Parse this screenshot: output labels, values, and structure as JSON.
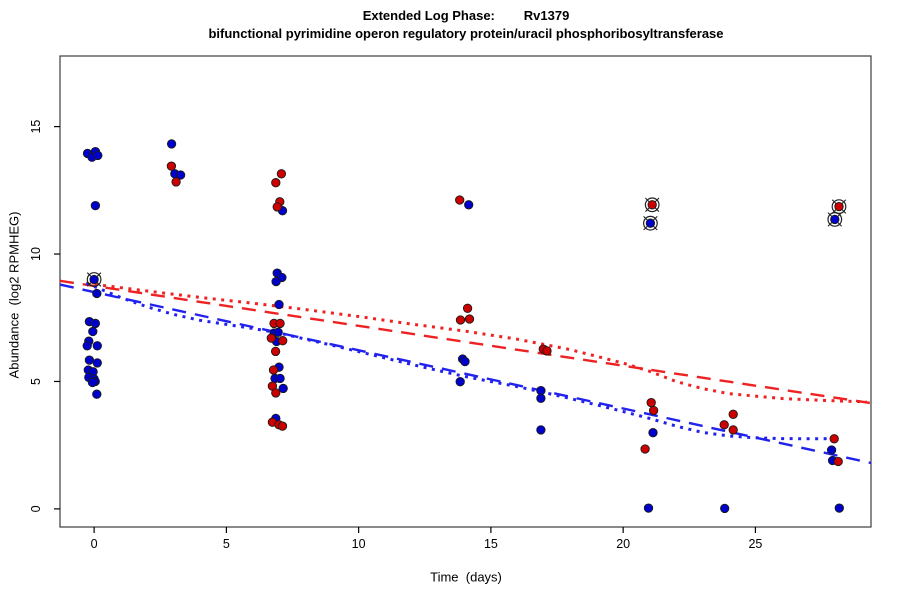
{
  "header": {
    "title": "Extended Log Phase:        Rv1379",
    "subtitle": "bifunctional pyrimidine operon regulatory protein/uracil phosphoribosyltransferase"
  },
  "chart_data": {
    "type": "scatter",
    "title": "Extended Log Phase:        Rv1379",
    "subtitle": "bifunctional pyrimidine operon regulatory protein/uracil phosphoribosyltransferase",
    "xlabel": "Time  (days)",
    "ylabel": "Abundance  (log2 RPMHEG)",
    "xlim": [
      -1.29,
      29.37
    ],
    "ylim": [
      -0.71,
      17.77
    ],
    "x_ticks": [
      0,
      5,
      10,
      15,
      20,
      25
    ],
    "y_ticks": [
      0,
      5,
      10,
      15
    ],
    "grid": false,
    "legend": "none",
    "colors": {
      "blue_point": "#0000CD",
      "red_point": "#CC0000",
      "blue_line": "#2222EE",
      "red_line": "#EE2222",
      "point_stroke": "#1a1a1a",
      "marker_ring": "#222222",
      "box": "#3c3c3c",
      "text": "#000000"
    },
    "series": [
      {
        "name": "red-dashed-fit",
        "type": "line",
        "style": "dashed",
        "color_key": "red_line",
        "points": [
          [
            -1.29,
            8.95
          ],
          [
            29.37,
            4.15
          ]
        ]
      },
      {
        "name": "blue-dashed-fit",
        "type": "line",
        "style": "dashed",
        "color_key": "blue_line",
        "points": [
          [
            -1.29,
            8.8
          ],
          [
            29.37,
            1.8
          ]
        ]
      },
      {
        "name": "red-dotted-fit",
        "type": "line",
        "style": "dotted",
        "color_key": "red_line",
        "points": [
          [
            -0.3,
            8.85
          ],
          [
            2,
            8.55
          ],
          [
            4,
            8.3
          ],
          [
            6,
            8.07
          ],
          [
            8,
            7.82
          ],
          [
            10,
            7.55
          ],
          [
            12,
            7.25
          ],
          [
            14,
            6.98
          ],
          [
            16,
            6.66
          ],
          [
            18,
            6.25
          ],
          [
            20,
            5.72
          ],
          [
            21,
            5.4
          ],
          [
            22,
            5.0
          ],
          [
            23,
            4.72
          ],
          [
            24,
            4.52
          ],
          [
            26,
            4.33
          ],
          [
            27.5,
            4.26
          ],
          [
            29.2,
            4.2
          ]
        ]
      },
      {
        "name": "blue-dotted-fit",
        "type": "line",
        "style": "dotted",
        "color_key": "blue_line",
        "points": [
          [
            -0.3,
            8.85
          ],
          [
            1,
            8.3
          ],
          [
            2,
            7.93
          ],
          [
            3,
            7.63
          ],
          [
            4,
            7.4
          ],
          [
            5,
            7.24
          ],
          [
            6,
            7.08
          ],
          [
            7,
            6.9
          ],
          [
            8,
            6.66
          ],
          [
            9,
            6.42
          ],
          [
            10,
            6.17
          ],
          [
            11,
            5.92
          ],
          [
            12,
            5.67
          ],
          [
            13,
            5.43
          ],
          [
            14,
            5.2
          ],
          [
            15,
            5.0
          ],
          [
            16,
            4.8
          ],
          [
            17,
            4.57
          ],
          [
            18,
            4.33
          ],
          [
            19,
            4.08
          ],
          [
            20,
            3.82
          ],
          [
            21,
            3.55
          ],
          [
            22,
            3.25
          ],
          [
            23,
            3.0
          ],
          [
            24,
            2.86
          ],
          [
            25,
            2.79
          ],
          [
            26,
            2.76
          ],
          [
            27,
            2.75
          ],
          [
            28.2,
            2.76
          ]
        ]
      },
      {
        "name": "blue-points",
        "type": "points",
        "color_key": "blue_point",
        "points": [
          [
            -0.25,
            13.95
          ],
          [
            0.05,
            14.02
          ],
          [
            -0.08,
            13.8
          ],
          [
            0.14,
            13.87
          ],
          [
            0.05,
            11.9
          ],
          [
            0.1,
            8.45
          ],
          [
            -0.18,
            7.35
          ],
          [
            0.05,
            7.28
          ],
          [
            -0.05,
            6.96
          ],
          [
            -0.2,
            6.58
          ],
          [
            -0.26,
            6.4
          ],
          [
            0.12,
            6.4
          ],
          [
            -0.18,
            5.84
          ],
          [
            0.12,
            5.73
          ],
          [
            -0.22,
            5.45
          ],
          [
            -0.04,
            5.38
          ],
          [
            -0.2,
            5.16
          ],
          [
            0.0,
            5.1
          ],
          [
            0.04,
            5.0
          ],
          [
            -0.06,
            4.96
          ],
          [
            0.1,
            4.5
          ],
          [
            2.93,
            14.32
          ],
          [
            3.05,
            13.15
          ],
          [
            3.27,
            13.1
          ],
          [
            7.12,
            11.7
          ],
          [
            6.92,
            9.25
          ],
          [
            7.1,
            9.08
          ],
          [
            6.88,
            8.92
          ],
          [
            6.99,
            8.02
          ],
          [
            6.8,
            6.9
          ],
          [
            6.96,
            6.93
          ],
          [
            6.9,
            6.57
          ],
          [
            6.99,
            5.56
          ],
          [
            6.84,
            5.12
          ],
          [
            7.03,
            5.12
          ],
          [
            7.15,
            4.73
          ],
          [
            6.87,
            3.55
          ],
          [
            14.16,
            11.93
          ],
          [
            13.93,
            5.88
          ],
          [
            14.02,
            5.78
          ],
          [
            13.84,
            4.99
          ],
          [
            16.89,
            4.64
          ],
          [
            16.89,
            4.34
          ],
          [
            16.89,
            3.1
          ],
          [
            21.13,
            2.99
          ],
          [
            20.96,
            0.03
          ],
          [
            23.84,
            0.02
          ],
          [
            27.88,
            2.31
          ],
          [
            27.92,
            1.9
          ],
          [
            28.17,
            0.03
          ]
        ]
      },
      {
        "name": "red-points",
        "type": "points",
        "color_key": "red_point",
        "points": [
          [
            2.92,
            13.45
          ],
          [
            3.1,
            12.83
          ],
          [
            7.08,
            13.15
          ],
          [
            6.87,
            12.8
          ],
          [
            7.02,
            12.05
          ],
          [
            6.92,
            11.85
          ],
          [
            6.8,
            7.28
          ],
          [
            7.03,
            7.28
          ],
          [
            6.7,
            6.7
          ],
          [
            7.13,
            6.6
          ],
          [
            6.86,
            6.18
          ],
          [
            6.78,
            5.45
          ],
          [
            6.74,
            4.82
          ],
          [
            6.87,
            4.55
          ],
          [
            6.74,
            3.4
          ],
          [
            6.99,
            3.3
          ],
          [
            7.12,
            3.25
          ],
          [
            13.82,
            12.12
          ],
          [
            14.12,
            7.87
          ],
          [
            13.85,
            7.41
          ],
          [
            14.19,
            7.45
          ],
          [
            16.98,
            6.27
          ],
          [
            17.12,
            6.2
          ],
          [
            21.06,
            4.17
          ],
          [
            21.15,
            3.86
          ],
          [
            20.83,
            2.35
          ],
          [
            24.16,
            3.71
          ],
          [
            23.82,
            3.3
          ],
          [
            24.16,
            3.1
          ],
          [
            27.98,
            2.75
          ],
          [
            28.13,
            1.86
          ]
        ]
      },
      {
        "name": "blue-marked-points",
        "type": "marked_points",
        "color_key": "blue_point",
        "points": [
          [
            0.0,
            9.0
          ],
          [
            21.03,
            11.21
          ],
          [
            28.0,
            11.36
          ]
        ]
      },
      {
        "name": "red-marked-points",
        "type": "marked_points",
        "color_key": "red_point",
        "points": [
          [
            21.1,
            11.93
          ],
          [
            28.16,
            11.86
          ]
        ]
      }
    ]
  }
}
